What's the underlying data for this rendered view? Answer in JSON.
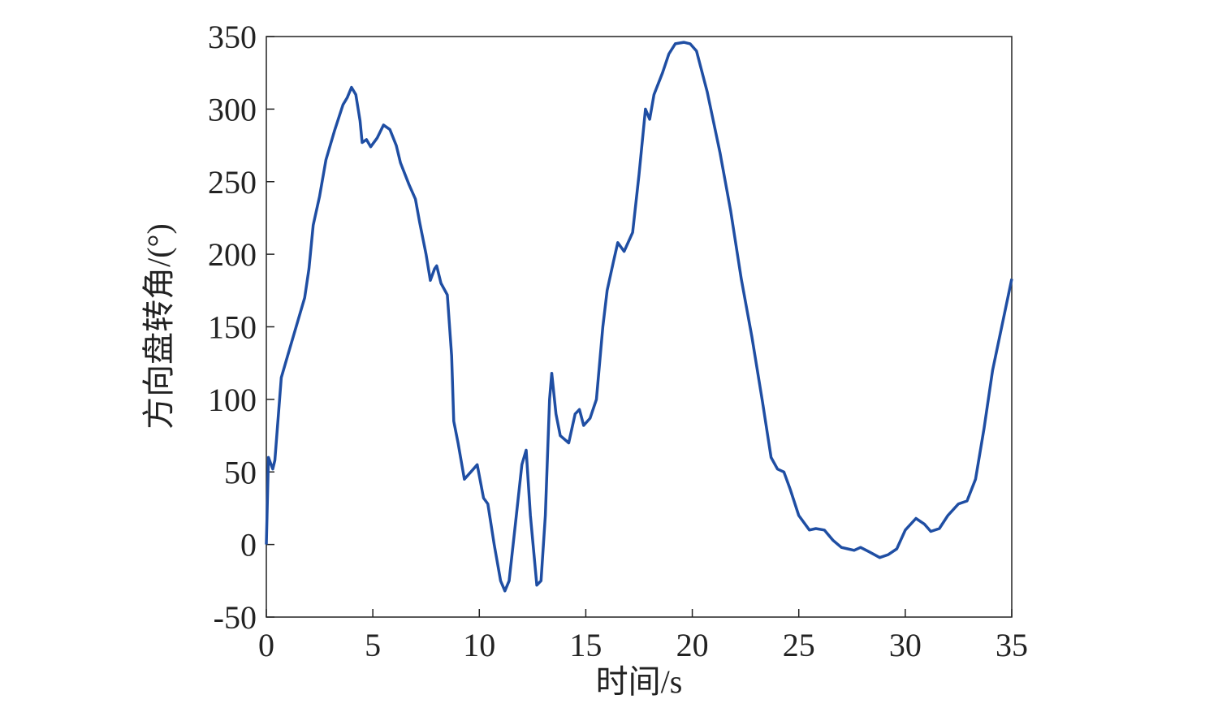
{
  "chart_data": {
    "type": "line",
    "x_label": "时间/s",
    "y_label": "方向盘转角/(°)",
    "xlim": [
      0,
      35
    ],
    "xticks": [
      0,
      5,
      10,
      15,
      20,
      25,
      30,
      35
    ],
    "ylim": [
      -50,
      350
    ],
    "yticks": [
      -50,
      0,
      50,
      100,
      150,
      200,
      250,
      300,
      350
    ],
    "series": [
      {
        "color": "#1f4ea3",
        "x": [
          0,
          0.1,
          0.3,
          0.4,
          0.7,
          1,
          1.5,
          1.8,
          2,
          2.2,
          2.5,
          2.8,
          3.2,
          3.6,
          3.8,
          4.0,
          4.2,
          4.4,
          4.5,
          4.7,
          4.9,
          5.2,
          5.5,
          5.8,
          6.1,
          6.3,
          6.7,
          7.0,
          7.2,
          7.5,
          7.7,
          7.9,
          8.0,
          8.2,
          8.5,
          8.7,
          8.8,
          9.0,
          9.3,
          9.6,
          9.9,
          10.2,
          10.4,
          10.7,
          11.0,
          11.2,
          11.4,
          11.7,
          12.0,
          12.2,
          12.4,
          12.7,
          12.9,
          13.1,
          13.3,
          13.4,
          13.6,
          13.8,
          14.2,
          14.5,
          14.7,
          14.9,
          15.2,
          15.5,
          15.8,
          16.0,
          16.3,
          16.5,
          16.8,
          17.2,
          17.5,
          17.8,
          18.0,
          18.2,
          18.6,
          18.9,
          19.2,
          19.6,
          19.9,
          20.2,
          20.7,
          21.3,
          21.8,
          22.3,
          22.8,
          23.3,
          23.7,
          24.0,
          24.3,
          24.6,
          25.0,
          25.5,
          25.8,
          26.2,
          26.6,
          27.0,
          27.3,
          27.6,
          27.9,
          28.3,
          28.8,
          29.2,
          29.6,
          30.0,
          30.5,
          30.9,
          31.2,
          31.6,
          32.0,
          32.5,
          32.9,
          33.3,
          33.7,
          34.1,
          34.6,
          35.0
        ],
        "values": [
          0,
          60,
          52,
          58,
          115,
          130,
          155,
          170,
          190,
          220,
          240,
          265,
          285,
          303,
          308,
          315,
          310,
          292,
          277,
          279,
          274,
          280,
          289,
          286,
          275,
          263,
          248,
          238,
          222,
          200,
          182,
          190,
          192,
          180,
          172,
          130,
          85,
          70,
          45,
          50,
          55,
          32,
          28,
          0,
          -25,
          -32,
          -25,
          15,
          55,
          65,
          20,
          -28,
          -25,
          20,
          100,
          118,
          90,
          75,
          70,
          90,
          93,
          82,
          87,
          100,
          150,
          175,
          195,
          208,
          202,
          215,
          255,
          300,
          293,
          310,
          325,
          338,
          345,
          346,
          345,
          340,
          312,
          270,
          230,
          183,
          143,
          98,
          60,
          52,
          50,
          38,
          20,
          10,
          11,
          10,
          3,
          -2,
          -3,
          -4,
          -2,
          -5,
          -9,
          -7,
          -3,
          10,
          18,
          14,
          9,
          11,
          20,
          28,
          30,
          45,
          80,
          120,
          155,
          183
        ]
      }
    ]
  }
}
